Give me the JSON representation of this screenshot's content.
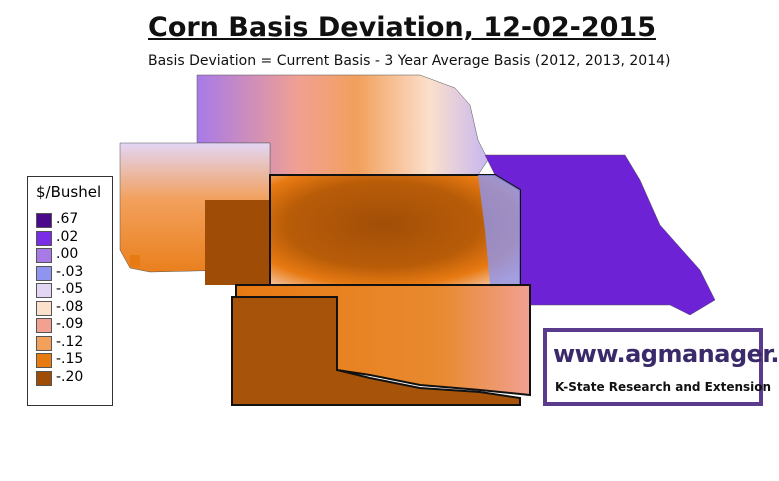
{
  "header": {
    "title": "Corn Basis Deviation, 12-02-2015",
    "subtitle": "Basis Deviation = Current Basis - 3 Year Average Basis (2012, 2013, 2014)"
  },
  "legend": {
    "title": "$/Bushel",
    "items": [
      {
        "label": ".67",
        "color": "#4b0a8c"
      },
      {
        "label": ".02",
        "color": "#7a2de6"
      },
      {
        "label": ".00",
        "color": "#a77ae8"
      },
      {
        "label": "-.03",
        "color": "#8f95ef"
      },
      {
        "label": "-.05",
        "color": "#e3d6f5"
      },
      {
        "label": "-.08",
        "color": "#fbe0cc"
      },
      {
        "label": "-.09",
        "color": "#f1a092"
      },
      {
        "label": "-.12",
        "color": "#f2a05c"
      },
      {
        "label": "-.15",
        "color": "#e87a12"
      },
      {
        "label": "-.20",
        "color": "#9e4c06"
      }
    ]
  },
  "logo": {
    "url": "www.agmanager.info",
    "tagline": "K-State Research and Extension"
  }
}
